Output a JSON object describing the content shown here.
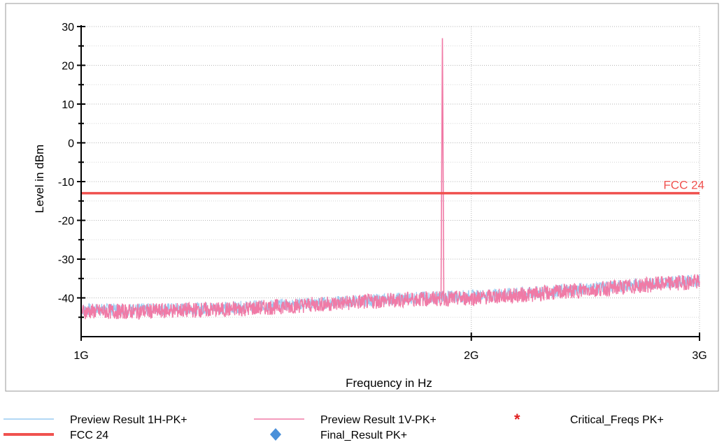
{
  "chart_data": {
    "type": "line",
    "xlabel": "Frequency in Hz",
    "ylabel": "Level in dBm",
    "x_scale": "log",
    "xlim": [
      1000000000,
      3000000000
    ],
    "ylim": [
      -50,
      30
    ],
    "x_ticks": [
      {
        "value": 1000000000,
        "label": "1G"
      },
      {
        "value": 2000000000,
        "label": "2G"
      },
      {
        "value": 3000000000,
        "label": "3G"
      }
    ],
    "y_ticks": [
      {
        "value": 30,
        "label": "30"
      },
      {
        "value": 20,
        "label": "20"
      },
      {
        "value": 10,
        "label": "10"
      },
      {
        "value": 0,
        "label": "0"
      },
      {
        "value": -10,
        "label": "-10"
      },
      {
        "value": -20,
        "label": "-20"
      },
      {
        "value": -30,
        "label": "-30"
      },
      {
        "value": -40,
        "label": "-40"
      }
    ],
    "grid": true,
    "series": [
      {
        "name": "Preview Result 1H-PK+",
        "color": "#99ccf2",
        "points": [
          [
            1000000000,
            -43
          ],
          [
            1100000000,
            -43
          ],
          [
            1200000000,
            -42.8
          ],
          [
            1300000000,
            -42.5
          ],
          [
            1400000000,
            -42
          ],
          [
            1500000000,
            -41.5
          ],
          [
            1600000000,
            -41
          ],
          [
            1700000000,
            -40.5
          ],
          [
            1800000000,
            -40
          ],
          [
            1900000000,
            -39.7
          ],
          [
            2000000000,
            -39.5
          ],
          [
            2200000000,
            -38.8
          ],
          [
            2400000000,
            -37.8
          ],
          [
            2600000000,
            -37
          ],
          [
            2800000000,
            -36
          ],
          [
            3000000000,
            -35.5
          ]
        ]
      },
      {
        "name": "Preview Result 1V-PK+",
        "color": "#f07aa6",
        "points": [
          [
            1000000000,
            -43.5
          ],
          [
            1100000000,
            -43.5
          ],
          [
            1200000000,
            -43.2
          ],
          [
            1300000000,
            -43
          ],
          [
            1400000000,
            -42.4
          ],
          [
            1500000000,
            -41.8
          ],
          [
            1600000000,
            -41.3
          ],
          [
            1700000000,
            -40.8
          ],
          [
            1800000000,
            -40.3
          ],
          [
            1880000000,
            -40.2
          ],
          [
            1900000000,
            27
          ],
          [
            1920000000,
            -40.2
          ],
          [
            2000000000,
            -40
          ],
          [
            2200000000,
            -39.2
          ],
          [
            2400000000,
            -38.2
          ],
          [
            2600000000,
            -37.3
          ],
          [
            2800000000,
            -36.4
          ],
          [
            3000000000,
            -35.8
          ]
        ]
      }
    ],
    "limit_line": {
      "name": "FCC 24",
      "value": -13,
      "color": "#f0524f"
    },
    "legend": {
      "placement": "bottom",
      "entries": [
        {
          "label": "Preview Result 1H-PK+",
          "kind": "line-thin",
          "color": "#99ccf2"
        },
        {
          "label": "Preview Result 1V-PK+",
          "kind": "line-thin",
          "color": "#f07aa6"
        },
        {
          "label": "Critical_Freqs PK+",
          "kind": "asterisk",
          "color": "#e02020"
        },
        {
          "label": "FCC 24",
          "kind": "line-thick",
          "color": "#f0524f"
        },
        {
          "label": "Final_Result PK+",
          "kind": "diamond",
          "color": "#4a90d9"
        }
      ]
    }
  }
}
